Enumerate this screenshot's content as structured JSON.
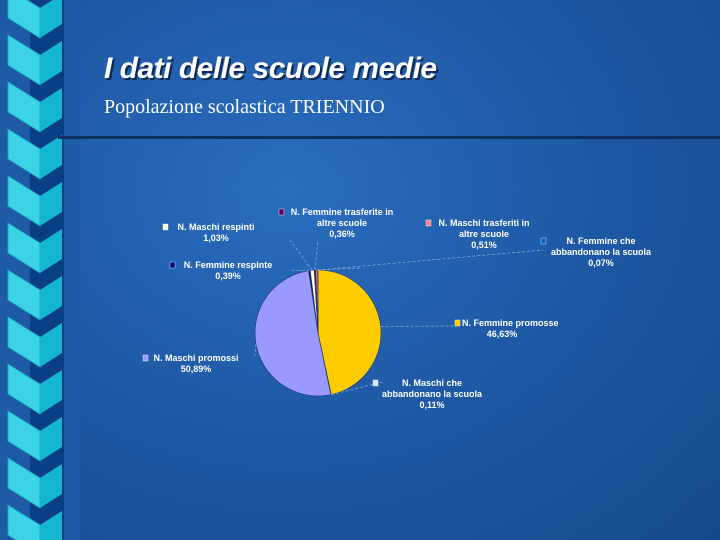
{
  "slide": {
    "title": "I dati delle scuole medie",
    "subtitle": "Popolazione scolastica TRIENNIO"
  },
  "colors": {
    "background": "#1f5aa6",
    "stripe_light": "#3cd3e6",
    "stripe_dark": "#0a3f86",
    "rule": "#0f2f5c"
  },
  "chart_data": {
    "type": "pie",
    "title": "",
    "slices": [
      {
        "name": "N. Femmine promosse",
        "value": "46,63%",
        "pct": 46.63,
        "color": "#ffcc00"
      },
      {
        "name": "N. Maschi che abbandonano la scuola",
        "value": "0,11%",
        "pct": 0.11,
        "color": "#cce6ff"
      },
      {
        "name": "N. Maschi promossi",
        "value": "50,89%",
        "pct": 50.89,
        "color": "#9999ff"
      },
      {
        "name": "N. Femmine respinte",
        "value": "0,39%",
        "pct": 0.39,
        "color": "#000080"
      },
      {
        "name": "N. Maschi respinti",
        "value": "1,03%",
        "pct": 1.03,
        "color": "#ffffcc"
      },
      {
        "name": "N. Femmine trasferite in altre scuole",
        "value": "0,36%",
        "pct": 0.36,
        "color": "#660066"
      },
      {
        "name": "N. Maschi trasferiti in altre scuole",
        "value": "0,51%",
        "pct": 0.51,
        "color": "#ff8080"
      },
      {
        "name": "N. Femmine che abbandonano la scuola",
        "value": "0,07%",
        "pct": 0.07,
        "color": "#0066cc"
      }
    ]
  }
}
